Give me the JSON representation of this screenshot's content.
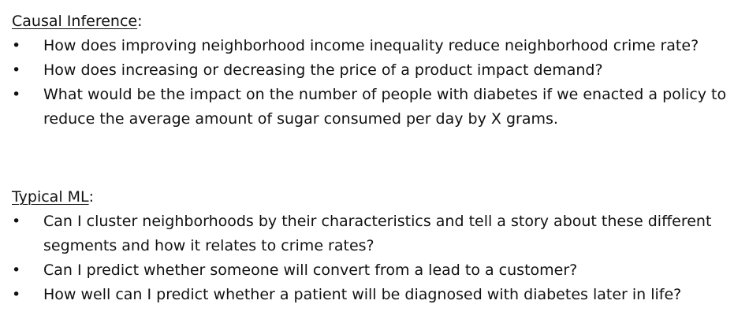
{
  "sections": [
    {
      "heading": "Causal Inference",
      "heading_suffix": ":",
      "items": [
        "How does improving neighborhood income inequality reduce neighborhood crime rate?",
        "How does increasing or decreasing the price of a product impact demand?",
        "What would be the impact on the number of people with diabetes if we enacted a policy to reduce the average amount of sugar consumed per day by X grams."
      ]
    },
    {
      "heading": "Typical ML",
      "heading_suffix": ":",
      "items": [
        "Can I cluster neighborhoods by their characteristics and tell a story about these different segments and how it relates to crime rates?",
        "Can I predict whether someone will convert from a lead to a customer?",
        "How well can I predict whether a patient will be diagnosed with diabetes later in life?"
      ]
    }
  ],
  "bullet_glyph": "•"
}
